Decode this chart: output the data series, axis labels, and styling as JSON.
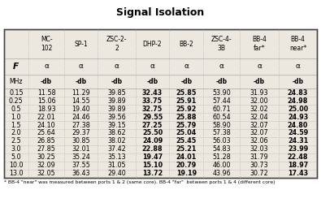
{
  "title": "Signal Isolation",
  "col_headers": [
    "MC-\n102",
    "SP-1",
    "ZSC-2-\n2",
    "DHP-2",
    "BB-2",
    "ZSC-4-\n3B",
    "BB-4\nfar*",
    "BB-4\nnear*"
  ],
  "row_label_F": "F",
  "row_label_MHz": "MHz",
  "alpha": "α",
  "unit": "-db",
  "frequencies": [
    "0.15",
    "0.25",
    "0.5",
    "1.0",
    "1.5",
    "2.0",
    "2.5",
    "3.0",
    "5.0",
    "10.0",
    "13.0"
  ],
  "data": [
    [
      11.58,
      11.29,
      39.85,
      32.43,
      25.85,
      53.9,
      31.93,
      24.83
    ],
    [
      15.06,
      14.55,
      39.89,
      33.75,
      25.91,
      57.44,
      32.0,
      24.98
    ],
    [
      18.93,
      19.4,
      39.89,
      32.75,
      25.92,
      60.71,
      32.02,
      25.0
    ],
    [
      22.01,
      24.46,
      39.56,
      29.55,
      25.88,
      60.54,
      32.04,
      24.93
    ],
    [
      24.1,
      27.38,
      39.15,
      27.25,
      25.79,
      58.9,
      32.07,
      24.8
    ],
    [
      25.64,
      29.37,
      38.62,
      25.5,
      25.04,
      57.38,
      32.07,
      24.59
    ],
    [
      26.85,
      30.85,
      38.02,
      24.09,
      25.45,
      56.03,
      32.06,
      24.31
    ],
    [
      27.85,
      32.01,
      37.42,
      22.88,
      25.21,
      54.83,
      32.03,
      23.99
    ],
    [
      30.25,
      35.24,
      35.13,
      19.47,
      24.01,
      51.28,
      31.79,
      22.48
    ],
    [
      32.09,
      37.55,
      31.05,
      15.1,
      20.79,
      46.0,
      30.73,
      18.97
    ],
    [
      32.05,
      36.43,
      29.4,
      13.72,
      19.19,
      43.96,
      30.72,
      17.43
    ]
  ],
  "bold_cols": [
    3,
    4,
    7
  ],
  "footnote": "* BB-4 \"near\" was measured between ports 1 & 2 (same core). BB-4 \"far\"  between ports 1 & 4 (different core)",
  "bg_color": "#ece8df",
  "grid_color": "#aaaaaa",
  "border_color": "#444444",
  "title_fontsize": 9,
  "header_fontsize": 5.5,
  "data_fontsize": 5.8,
  "footnote_fontsize": 4.3
}
